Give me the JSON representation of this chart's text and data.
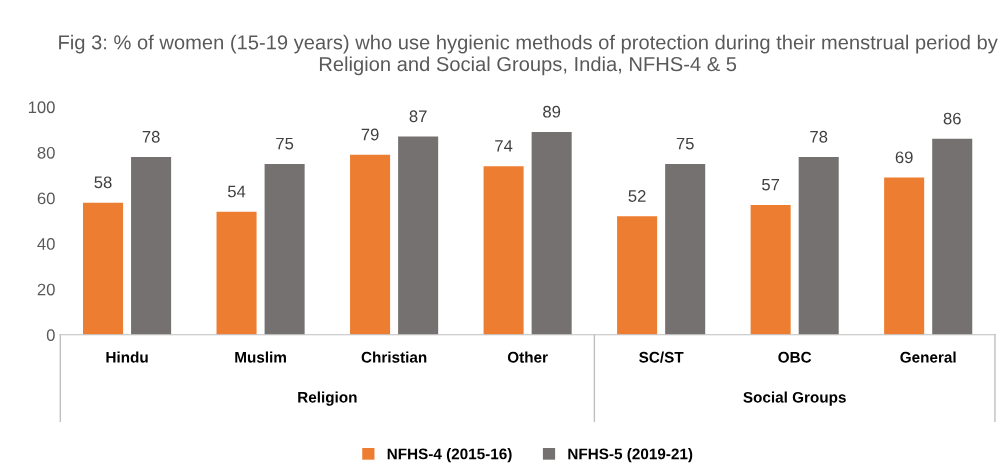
{
  "chart_data": {
    "type": "bar",
    "title": "Fig 3: % of women (15-19 years) who use hygienic methods of protection during their menstrual period by Religion and Social Groups, India, NFHS-4 & 5",
    "categories": [
      "Hindu",
      "Muslim",
      "Christian",
      "Other",
      "SC/ST",
      "OBC",
      "General"
    ],
    "series": [
      {
        "name": "NFHS-4 (2015-16)",
        "color": "#ed7d31",
        "values": [
          58,
          54,
          79,
          74,
          52,
          57,
          69
        ]
      },
      {
        "name": "NFHS-5 (2019-21)",
        "color": "#767171",
        "values": [
          78,
          75,
          87,
          89,
          75,
          78,
          86
        ]
      }
    ],
    "ylim": [
      0,
      100
    ],
    "yticks": [
      0,
      20,
      40,
      60,
      80,
      100
    ],
    "grid": false,
    "legend": "bottom",
    "data_labels": true,
    "annotations": [
      "Religion",
      "Social Groups"
    ]
  }
}
